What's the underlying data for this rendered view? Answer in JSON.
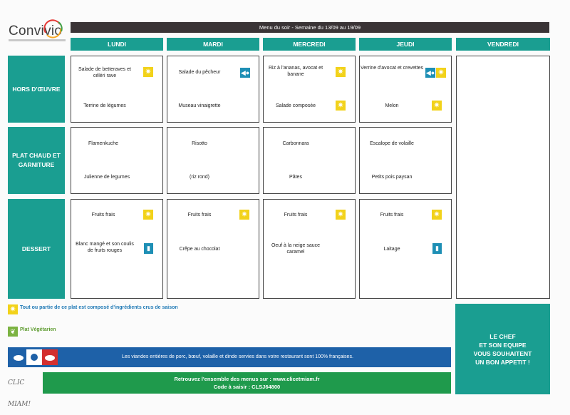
{
  "logo": {
    "name": "Convivio"
  },
  "title": "Menu du soir - Semaine du 13/09 au 19/09",
  "days": [
    "LUNDI",
    "MARDI",
    "MERCREDI",
    "JEUDI",
    "VENDREDI"
  ],
  "rows": [
    "HORS D'ŒUVRE",
    "PLAT CHAUD ET GARNITURE",
    "DESSERT"
  ],
  "menu": {
    "lundi": {
      "hors1": "Salade de betteraves et céléri rave",
      "hors2": "Terrine de légumes",
      "plat1": "Flamenkuche",
      "plat2": "Julienne de legumes",
      "dess1": "Fruits frais",
      "dess2": "Blanc mangé et son coulis de fruits rouges"
    },
    "mardi": {
      "hors1": "Salade du pêcheur",
      "hors2": "Museau vinaigrette",
      "plat1": "Risotto",
      "plat2": "(riz rond)",
      "dess1": "Fruits frais",
      "dess2": "Crêpe au chocolat"
    },
    "mercredi": {
      "hors1": "Riz à l'ananas, avocat et banane",
      "hors2": "Salade composée",
      "plat1": "Carbonnara",
      "plat2": "Pâtes",
      "dess1": "Fruits frais",
      "dess2": "Oeuf à la neige sauce caramel"
    },
    "jeudi": {
      "hors1": "Verrine d'avocat et crevettes",
      "hors2": "Melon",
      "plat1": "Escalope de volaille",
      "plat2": "Petits pois paysan",
      "dess1": "Fruits frais",
      "dess2": "Laitage"
    }
  },
  "legend": {
    "season": "Tout ou partie de ce plat est composé d'ingrédients crus de saison",
    "veg": "Plat Végétarien"
  },
  "icons": {
    "season": "sun-icon",
    "fish": "fish-icon",
    "dairy": "bottle-icon",
    "veg": "vegetarian-icon"
  },
  "origin_text": "Les viandes entières de porc, bœuf, volaille et dinde servies dans votre restaurant sont 100% françaises.",
  "clicmiam": {
    "logo": "CLIC MIAM!",
    "line1": "Retrouvez l'ensemble des menus sur : www.clicetmiam.fr",
    "line2": "Code à saisir : CLSJ64800"
  },
  "chef": {
    "l1": "LE CHEF",
    "l2": "ET SON EQUIPE",
    "l3": "VOUS SOUHAITENT",
    "l4": "UN BON APPETIT !"
  },
  "colors": {
    "teal": "#1a9e91",
    "dark": "#3a3436",
    "blue": "#1e61a8",
    "green": "#1f9a4c",
    "sun": "#f2d21a"
  }
}
